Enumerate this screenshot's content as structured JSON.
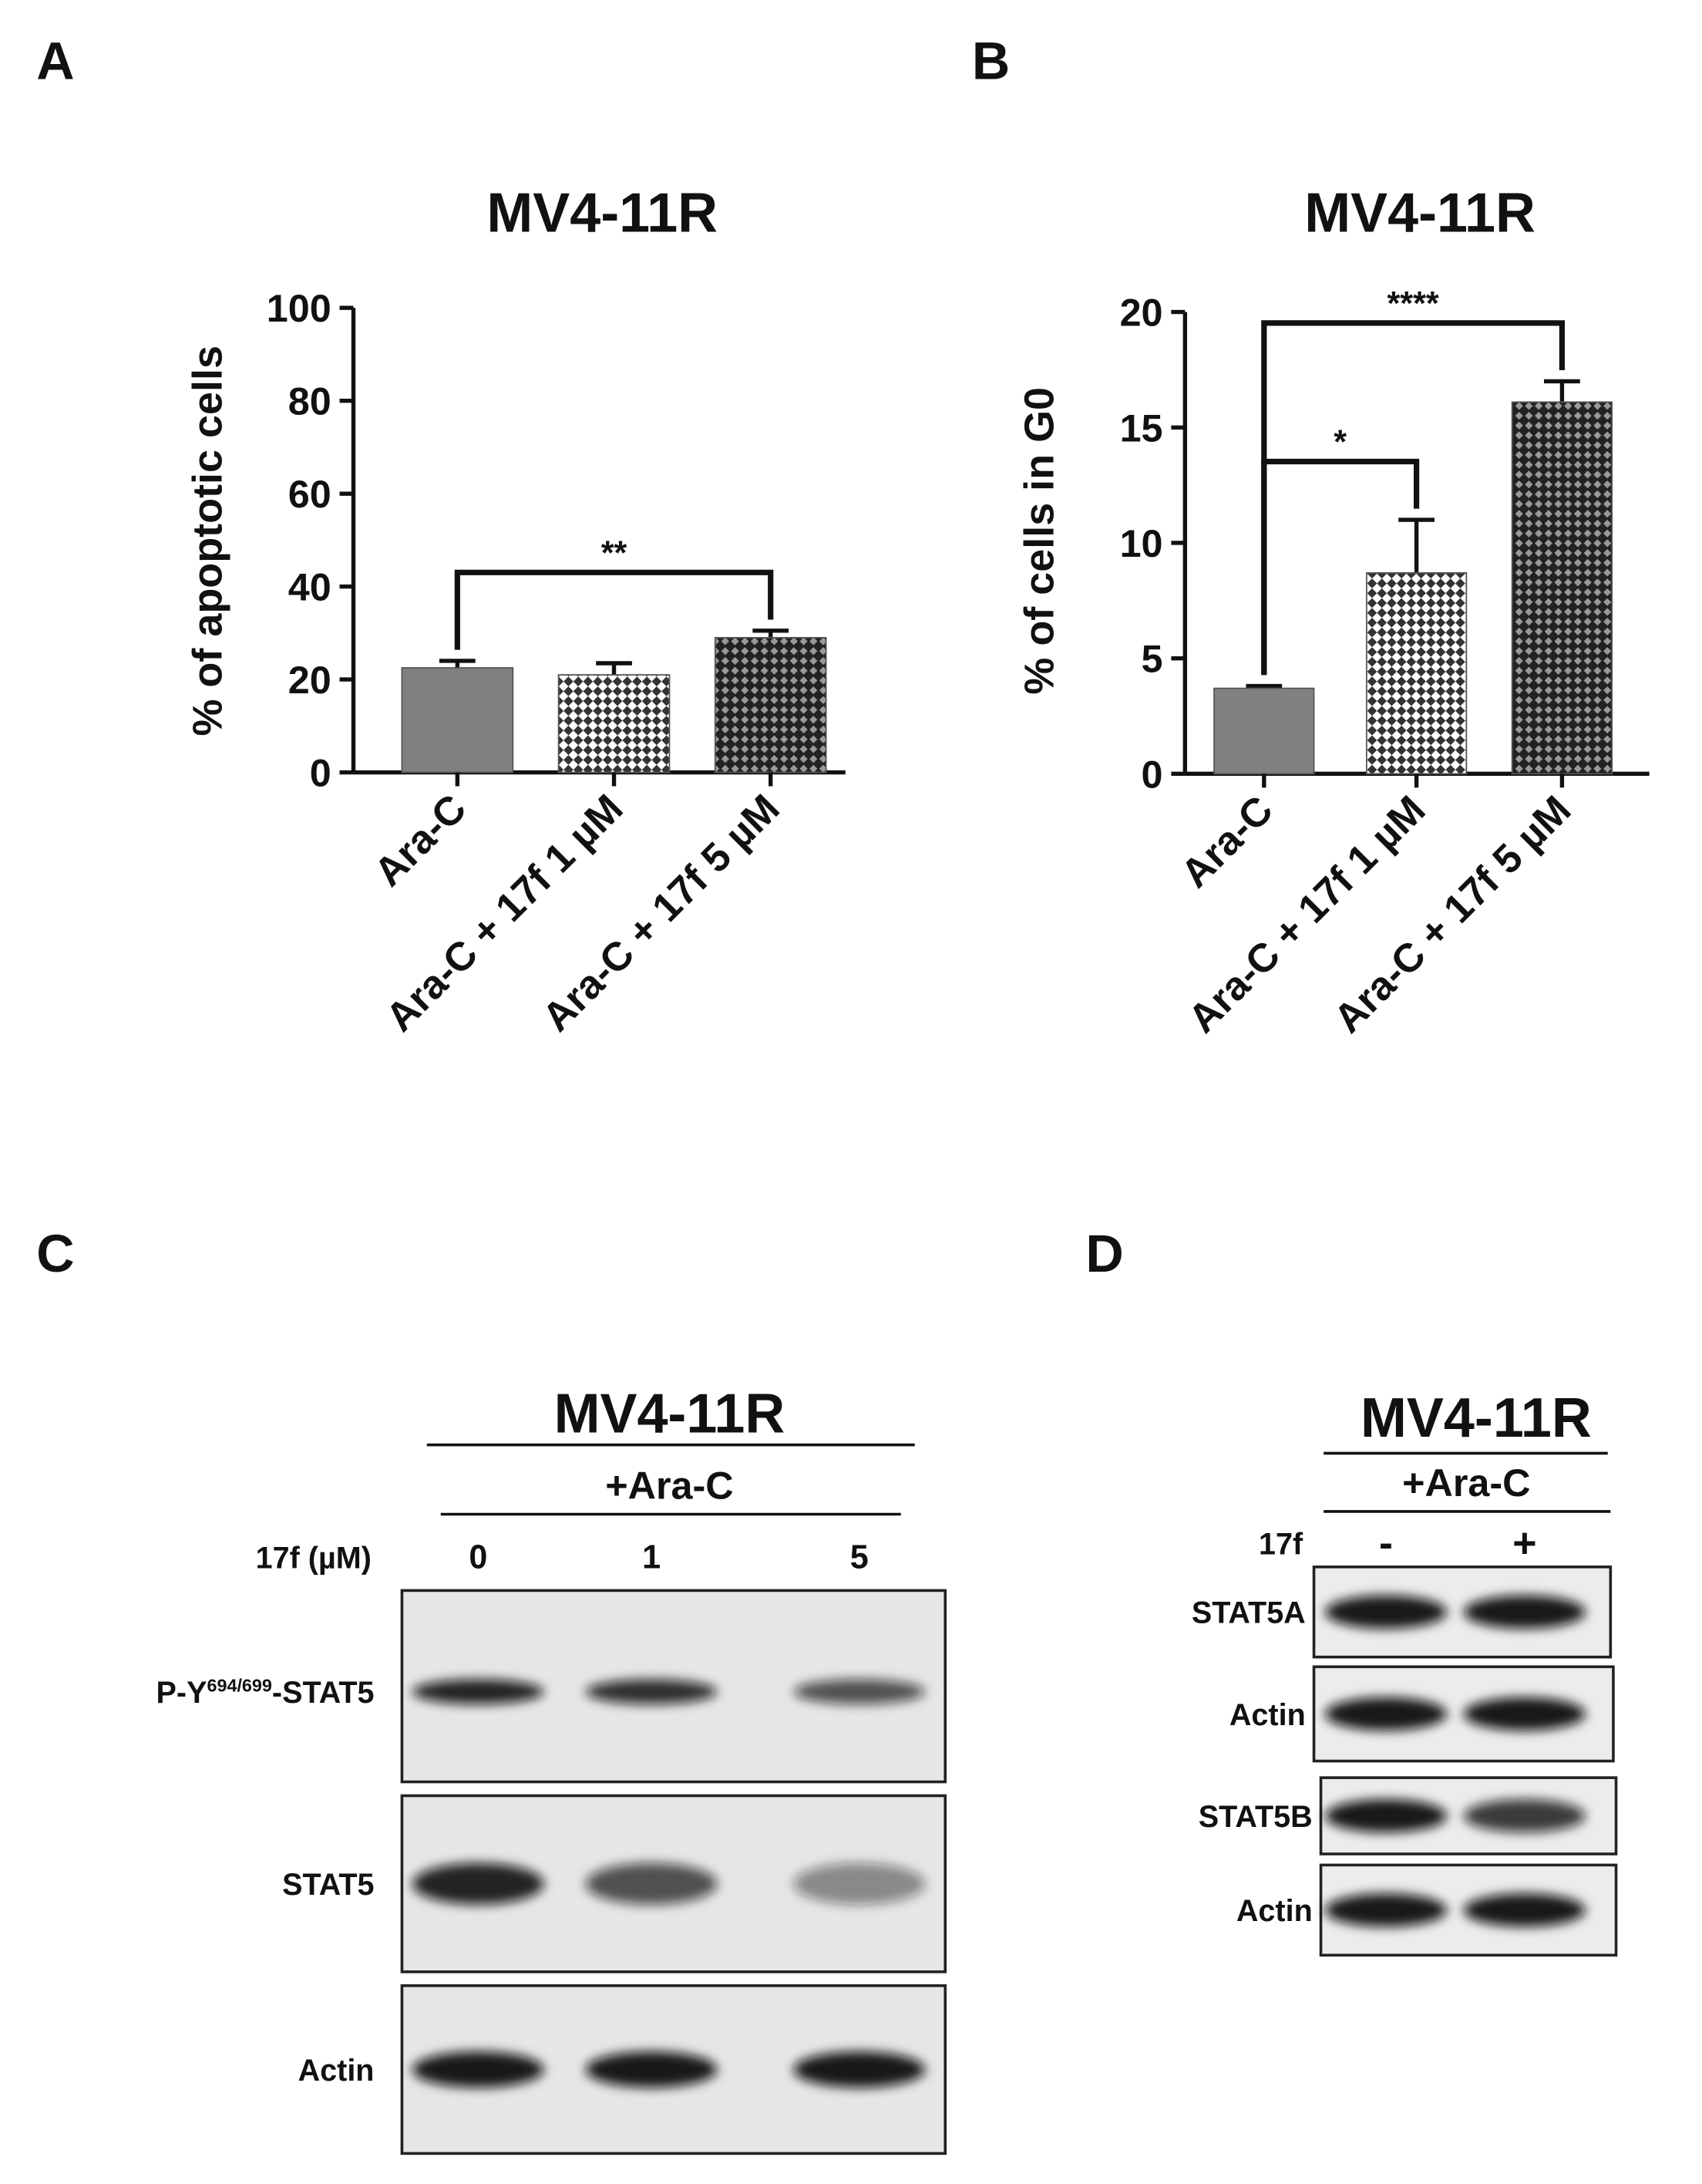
{
  "chart_data": [
    {
      "type": "bar",
      "panel": "A",
      "title": "MV4-11R",
      "ylabel": "% of apoptotic cells",
      "categories": [
        "Ara-C",
        "Ara-C + 17f 1 µM",
        "Ara-C + 17f 5 µM"
      ],
      "values": [
        22.5,
        21,
        29
      ],
      "errors": [
        1.5,
        2.5,
        1.5
      ],
      "color": [
        "#808080",
        "#ffffff",
        "#222222"
      ],
      "ylim": [
        0,
        100
      ],
      "yticks": [
        0,
        20,
        40,
        60,
        80,
        100
      ],
      "annotations": [
        {
          "text": "**",
          "from": 0,
          "to": 2
        }
      ]
    },
    {
      "type": "bar",
      "panel": "B",
      "title": "MV4-11R",
      "ylabel": "% of cells in G0",
      "categories": [
        "Ara-C",
        "Ara-C + 17f 1 µM",
        "Ara-C + 17f 5 µM"
      ],
      "values": [
        3.7,
        8.7,
        16.1
      ],
      "errors": [
        0.1,
        2.3,
        0.9
      ],
      "color": [
        "#808080",
        "#ffffff",
        "#222222"
      ],
      "ylim": [
        0,
        20
      ],
      "yticks": [
        0,
        5,
        10,
        15,
        20
      ],
      "annotations": [
        {
          "text": "*",
          "from": 0,
          "to": 1
        },
        {
          "text": "****",
          "from": 0,
          "to": 2
        }
      ]
    }
  ],
  "blot_c": {
    "panel": "C",
    "title": "MV4-11R",
    "condition": "+Ara-C",
    "dose_label": "17f (µM)",
    "lanes": [
      "0",
      "1",
      "5"
    ],
    "rows": [
      {
        "prefix": "P-Y",
        "sup": "694/699",
        "suffix": "-STAT5"
      },
      {
        "prefix": "STAT5"
      },
      {
        "prefix": "Actin"
      }
    ]
  },
  "blot_d": {
    "panel": "D",
    "title": "MV4-11R",
    "condition": "+Ara-C",
    "dose_label": "17f",
    "lanes": [
      "-",
      "+"
    ],
    "rows": [
      "STAT5A",
      "Actin",
      "STAT5B",
      "Actin"
    ]
  }
}
